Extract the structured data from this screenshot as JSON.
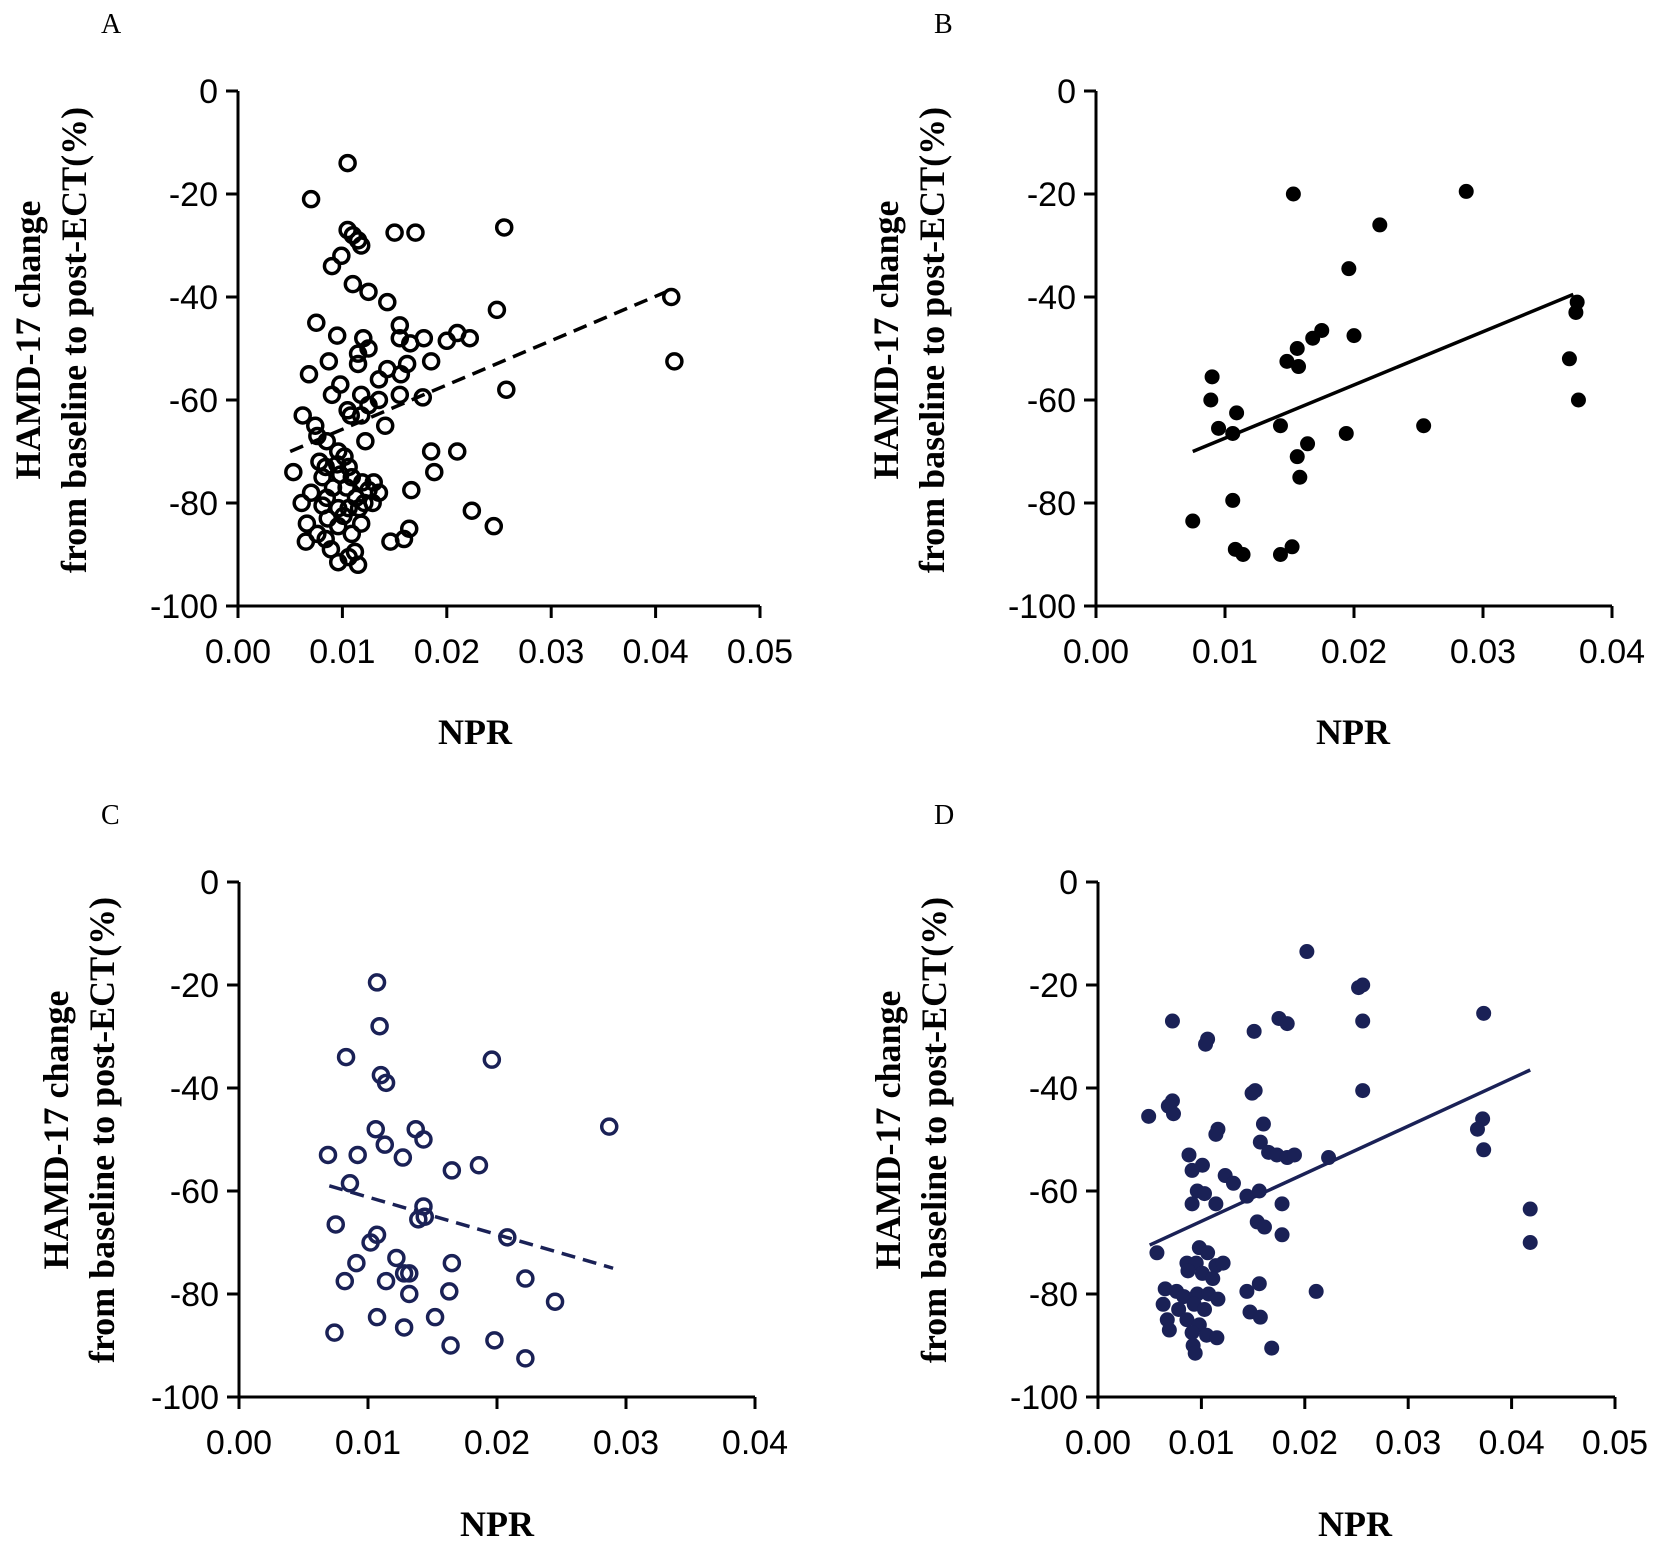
{
  "chart_data": [
    {
      "panel": "A",
      "type": "scatter",
      "xlabel": "NPR",
      "ylabel_line1": "HAMD-17 change",
      "ylabel_line2": "from baseline to post-ECT(%)",
      "xlim": [
        0,
        0.05
      ],
      "ylim": [
        -100,
        0
      ],
      "xticks": [
        "0.00",
        "0.01",
        "0.02",
        "0.03",
        "0.04",
        "0.05"
      ],
      "yticks": [
        "0",
        "-20",
        "-40",
        "-60",
        "-80",
        "-100"
      ],
      "marker": "open",
      "color": "#000000",
      "fit": {
        "style": "dashed",
        "x": [
          0.005,
          0.041
        ],
        "y": [
          -70,
          -39
        ]
      },
      "points": [
        [
          0.0105,
          -14
        ],
        [
          0.007,
          -21
        ],
        [
          0.0105,
          -27
        ],
        [
          0.011,
          -28
        ],
        [
          0.0115,
          -29
        ],
        [
          0.0118,
          -30
        ],
        [
          0.0099,
          -32
        ],
        [
          0.009,
          -34
        ],
        [
          0.015,
          -27.5
        ],
        [
          0.017,
          -27.5
        ],
        [
          0.0255,
          -26.5
        ],
        [
          0.011,
          -37.5
        ],
        [
          0.0125,
          -39
        ],
        [
          0.0143,
          -41
        ],
        [
          0.0075,
          -45
        ],
        [
          0.0095,
          -47.5
        ],
        [
          0.012,
          -48
        ],
        [
          0.0155,
          -45.5
        ],
        [
          0.0155,
          -48
        ],
        [
          0.0165,
          -49
        ],
        [
          0.0178,
          -48
        ],
        [
          0.02,
          -48.5
        ],
        [
          0.021,
          -47
        ],
        [
          0.0222,
          -48
        ],
        [
          0.0248,
          -42.5
        ],
        [
          0.0415,
          -40
        ],
        [
          0.0125,
          -50
        ],
        [
          0.0115,
          -51
        ],
        [
          0.0115,
          -53
        ],
        [
          0.0087,
          -52.5
        ],
        [
          0.0143,
          -54
        ],
        [
          0.0156,
          -55
        ],
        [
          0.0162,
          -53
        ],
        [
          0.0185,
          -52.5
        ],
        [
          0.0068,
          -55
        ],
        [
          0.0135,
          -56
        ],
        [
          0.0118,
          -59
        ],
        [
          0.009,
          -59
        ],
        [
          0.0098,
          -57
        ],
        [
          0.0177,
          -59.5
        ],
        [
          0.0257,
          -58
        ],
        [
          0.0418,
          -52.5
        ],
        [
          0.0105,
          -62
        ],
        [
          0.0125,
          -61
        ],
        [
          0.0135,
          -60
        ],
        [
          0.0155,
          -59
        ],
        [
          0.0062,
          -63
        ],
        [
          0.0108,
          -63
        ],
        [
          0.0118,
          -63
        ],
        [
          0.0074,
          -65
        ],
        [
          0.0141,
          -65
        ],
        [
          0.0076,
          -67
        ],
        [
          0.0085,
          -68
        ],
        [
          0.0122,
          -68
        ],
        [
          0.0096,
          -70
        ],
        [
          0.0102,
          -71
        ],
        [
          0.0185,
          -70
        ],
        [
          0.021,
          -70
        ],
        [
          0.0078,
          -72
        ],
        [
          0.0084,
          -73
        ],
        [
          0.0095,
          -72.5
        ],
        [
          0.0106,
          -73
        ],
        [
          0.0053,
          -74
        ],
        [
          0.0098,
          -74.5
        ],
        [
          0.0081,
          -75
        ],
        [
          0.0109,
          -75
        ],
        [
          0.0119,
          -76
        ],
        [
          0.013,
          -76
        ],
        [
          0.0091,
          -77
        ],
        [
          0.0104,
          -77
        ],
        [
          0.0125,
          -77.5
        ],
        [
          0.0135,
          -78
        ],
        [
          0.0166,
          -77.5
        ],
        [
          0.007,
          -78
        ],
        [
          0.0085,
          -79
        ],
        [
          0.0113,
          -79
        ],
        [
          0.0121,
          -80
        ],
        [
          0.0061,
          -80
        ],
        [
          0.0081,
          -80.5
        ],
        [
          0.0096,
          -81
        ],
        [
          0.0106,
          -81
        ],
        [
          0.0116,
          -81
        ],
        [
          0.0129,
          -80
        ],
        [
          0.0188,
          -74
        ],
        [
          0.0224,
          -81.5
        ],
        [
          0.0086,
          -83
        ],
        [
          0.0101,
          -82.5
        ],
        [
          0.0066,
          -84
        ],
        [
          0.0096,
          -84.5
        ],
        [
          0.0118,
          -84
        ],
        [
          0.0164,
          -85
        ],
        [
          0.0245,
          -84.5
        ],
        [
          0.0076,
          -86
        ],
        [
          0.0109,
          -86
        ],
        [
          0.0084,
          -87
        ],
        [
          0.0065,
          -87.5
        ],
        [
          0.0146,
          -87.5
        ],
        [
          0.0159,
          -87
        ],
        [
          0.0089,
          -89
        ],
        [
          0.0112,
          -89.5
        ],
        [
          0.0096,
          -91.5
        ],
        [
          0.0115,
          -92
        ],
        [
          0.0106,
          -90.5
        ]
      ]
    },
    {
      "panel": "B",
      "type": "scatter",
      "xlabel": "NPR",
      "ylabel_line1": "HAMD-17 change",
      "ylabel_line2": "from baseline to post-ECT(%)",
      "xlim": [
        0,
        0.04
      ],
      "ylim": [
        -100,
        0
      ],
      "xticks": [
        "0.00",
        "0.01",
        "0.02",
        "0.03",
        "0.04"
      ],
      "yticks": [
        "0",
        "-20",
        "-40",
        "-60",
        "-80",
        "-100"
      ],
      "marker": "filled",
      "color": "#000000",
      "fit": {
        "style": "solid",
        "x": [
          0.0075,
          0.037
        ],
        "y": [
          -70,
          -39.5
        ]
      },
      "points": [
        [
          0.0153,
          -20
        ],
        [
          0.0287,
          -19.5
        ],
        [
          0.022,
          -26
        ],
        [
          0.0196,
          -34.5
        ],
        [
          0.0373,
          -41
        ],
        [
          0.0372,
          -43
        ],
        [
          0.0175,
          -46.5
        ],
        [
          0.0168,
          -48
        ],
        [
          0.02,
          -47.5
        ],
        [
          0.0156,
          -50
        ],
        [
          0.0148,
          -52.5
        ],
        [
          0.0157,
          -53.5
        ],
        [
          0.0367,
          -52
        ],
        [
          0.009,
          -55.5
        ],
        [
          0.0089,
          -60
        ],
        [
          0.0374,
          -60
        ],
        [
          0.0109,
          -62.5
        ],
        [
          0.0095,
          -65.5
        ],
        [
          0.0106,
          -66.5
        ],
        [
          0.0143,
          -65
        ],
        [
          0.0254,
          -65
        ],
        [
          0.0194,
          -66.5
        ],
        [
          0.0164,
          -68.5
        ],
        [
          0.0156,
          -71
        ],
        [
          0.0158,
          -75
        ],
        [
          0.0106,
          -79.5
        ],
        [
          0.0075,
          -83.5
        ],
        [
          0.0108,
          -89
        ],
        [
          0.0114,
          -90
        ],
        [
          0.0143,
          -90
        ],
        [
          0.0152,
          -88.5
        ]
      ]
    },
    {
      "panel": "C",
      "type": "scatter",
      "xlabel": "NPR",
      "ylabel_line1": "HAMD-17 change",
      "ylabel_line2": "from baseline to post-ECT(%)",
      "xlim": [
        0,
        0.04
      ],
      "ylim": [
        -100,
        0
      ],
      "xticks": [
        "0.00",
        "0.01",
        "0.02",
        "0.03",
        "0.04"
      ],
      "yticks": [
        "0",
        "-20",
        "-40",
        "-60",
        "-80",
        "-100"
      ],
      "marker": "open",
      "color": "#1a2156",
      "fit": {
        "style": "dashed",
        "x": [
          0.007,
          0.029
        ],
        "y": [
          -59,
          -75
        ]
      },
      "points": [
        [
          0.0107,
          -19.5
        ],
        [
          0.0109,
          -28
        ],
        [
          0.0083,
          -34
        ],
        [
          0.0196,
          -34.5
        ],
        [
          0.011,
          -37.5
        ],
        [
          0.0114,
          -39
        ],
        [
          0.0287,
          -47.5
        ],
        [
          0.0106,
          -48
        ],
        [
          0.0137,
          -48
        ],
        [
          0.0143,
          -50
        ],
        [
          0.0113,
          -51
        ],
        [
          0.0069,
          -53
        ],
        [
          0.0092,
          -53
        ],
        [
          0.0127,
          -53.5
        ],
        [
          0.0186,
          -55
        ],
        [
          0.0165,
          -56
        ],
        [
          0.0086,
          -58.5
        ],
        [
          0.0143,
          -63
        ],
        [
          0.0144,
          -65
        ],
        [
          0.0139,
          -65.5
        ],
        [
          0.0075,
          -66.5
        ],
        [
          0.0107,
          -68.5
        ],
        [
          0.0102,
          -70
        ],
        [
          0.0208,
          -69
        ],
        [
          0.0122,
          -73
        ],
        [
          0.0091,
          -74
        ],
        [
          0.0165,
          -74
        ],
        [
          0.0128,
          -76
        ],
        [
          0.0132,
          -76
        ],
        [
          0.0082,
          -77.5
        ],
        [
          0.0114,
          -77.5
        ],
        [
          0.0222,
          -77
        ],
        [
          0.0132,
          -80
        ],
        [
          0.0163,
          -79.5
        ],
        [
          0.0245,
          -81.5
        ],
        [
          0.0107,
          -84.5
        ],
        [
          0.0152,
          -84.5
        ],
        [
          0.0074,
          -87.5
        ],
        [
          0.0128,
          -86.5
        ],
        [
          0.0164,
          -90
        ],
        [
          0.0198,
          -89
        ],
        [
          0.0222,
          -92.5
        ]
      ]
    },
    {
      "panel": "D",
      "type": "scatter",
      "xlabel": "NPR",
      "ylabel_line1": "HAMD-17 change",
      "ylabel_line2": "from baseline to post-ECT(%)",
      "xlim": [
        0,
        0.05
      ],
      "ylim": [
        -100,
        0
      ],
      "xticks": [
        "0.00",
        "0.01",
        "0.02",
        "0.03",
        "0.04",
        "0.05"
      ],
      "yticks": [
        "0",
        "-20",
        "-40",
        "-60",
        "-80",
        "-100"
      ],
      "marker": "filled",
      "color": "#1a2156",
      "fit": {
        "style": "solid",
        "x": [
          0.005,
          0.0418
        ],
        "y": [
          -70.5,
          -36.5
        ]
      },
      "points": [
        [
          0.0202,
          -13.5
        ],
        [
          0.0256,
          -20
        ],
        [
          0.0252,
          -20.5
        ],
        [
          0.0373,
          -25.5
        ],
        [
          0.0072,
          -27
        ],
        [
          0.0175,
          -26.5
        ],
        [
          0.0183,
          -27.5
        ],
        [
          0.0256,
          -27
        ],
        [
          0.0151,
          -29
        ],
        [
          0.0106,
          -30.5
        ],
        [
          0.0104,
          -31.5
        ],
        [
          0.0152,
          -40.5
        ],
        [
          0.0149,
          -41
        ],
        [
          0.0256,
          -40.5
        ],
        [
          0.0072,
          -42.5
        ],
        [
          0.0068,
          -43.5
        ],
        [
          0.0049,
          -45.5
        ],
        [
          0.0073,
          -45
        ],
        [
          0.0372,
          -46
        ],
        [
          0.0367,
          -48
        ],
        [
          0.0116,
          -48
        ],
        [
          0.0114,
          -49
        ],
        [
          0.016,
          -47
        ],
        [
          0.0157,
          -50.5
        ],
        [
          0.0373,
          -52
        ],
        [
          0.0165,
          -52.5
        ],
        [
          0.0173,
          -53
        ],
        [
          0.0183,
          -53.5
        ],
        [
          0.019,
          -53
        ],
        [
          0.0223,
          -53.5
        ],
        [
          0.0088,
          -53
        ],
        [
          0.0101,
          -55
        ],
        [
          0.0091,
          -56
        ],
        [
          0.0123,
          -57
        ],
        [
          0.0131,
          -58.5
        ],
        [
          0.0096,
          -60
        ],
        [
          0.0103,
          -60.5
        ],
        [
          0.0144,
          -61
        ],
        [
          0.0156,
          -60
        ],
        [
          0.0091,
          -62.5
        ],
        [
          0.0178,
          -62.5
        ],
        [
          0.0418,
          -63.5
        ],
        [
          0.0114,
          -62.5
        ],
        [
          0.0154,
          -66
        ],
        [
          0.0161,
          -67
        ],
        [
          0.0178,
          -68.5
        ],
        [
          0.0418,
          -70
        ],
        [
          0.0098,
          -71
        ],
        [
          0.0106,
          -72
        ],
        [
          0.0057,
          -72
        ],
        [
          0.0086,
          -74
        ],
        [
          0.0095,
          -74
        ],
        [
          0.0114,
          -74.5
        ],
        [
          0.0121,
          -74
        ],
        [
          0.0087,
          -75.5
        ],
        [
          0.0101,
          -76
        ],
        [
          0.0111,
          -77
        ],
        [
          0.0065,
          -79
        ],
        [
          0.0076,
          -79.5
        ],
        [
          0.0083,
          -80.5
        ],
        [
          0.0096,
          -80
        ],
        [
          0.0107,
          -80
        ],
        [
          0.0116,
          -81
        ],
        [
          0.0144,
          -79.5
        ],
        [
          0.0156,
          -78
        ],
        [
          0.0211,
          -79.5
        ],
        [
          0.0063,
          -82
        ],
        [
          0.0078,
          -83
        ],
        [
          0.0093,
          -82
        ],
        [
          0.0103,
          -83
        ],
        [
          0.0147,
          -83.5
        ],
        [
          0.0067,
          -85
        ],
        [
          0.0086,
          -85
        ],
        [
          0.0098,
          -86
        ],
        [
          0.0157,
          -84.5
        ],
        [
          0.0069,
          -87
        ],
        [
          0.0091,
          -87.5
        ],
        [
          0.0105,
          -88
        ],
        [
          0.0115,
          -88.5
        ],
        [
          0.0092,
          -90
        ],
        [
          0.0094,
          -91.5
        ],
        [
          0.0168,
          -90.5
        ]
      ]
    }
  ]
}
